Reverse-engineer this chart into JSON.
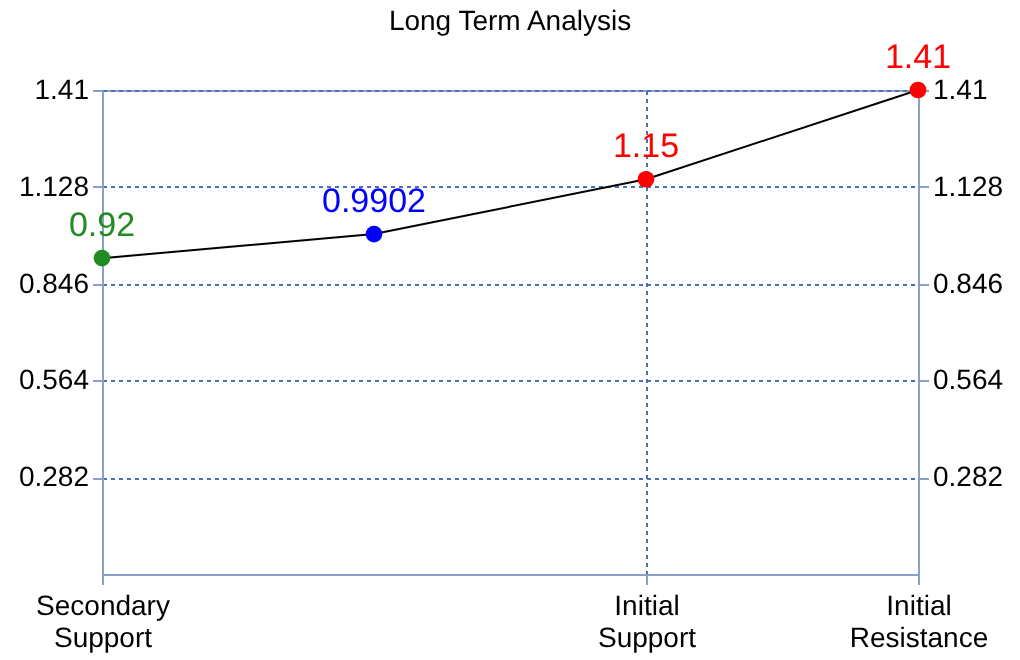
{
  "chart_data": {
    "type": "line",
    "title": "Long Term Analysis",
    "categories": [
      "Secondary\nSupport",
      null,
      "Initial\nSupport",
      "Initial\nResistance"
    ],
    "ylim": [
      0,
      1.41
    ],
    "yticks": [
      0.282,
      0.564,
      0.846,
      1.128,
      1.41
    ],
    "y2lim": [
      0,
      1.41
    ],
    "y2ticks": [
      0.282,
      0.564,
      0.846,
      1.128,
      1.41
    ],
    "series": [
      {
        "color": "#000000",
        "values": [
          0.92,
          0.9902,
          1.15,
          1.41
        ],
        "colors": [
          "#228b22",
          "#0000ff",
          "#ff0000",
          "#ff0000"
        ]
      }
    ],
    "data_labels": true,
    "marker": "circle",
    "line_style": "solid",
    "grid": true
  }
}
